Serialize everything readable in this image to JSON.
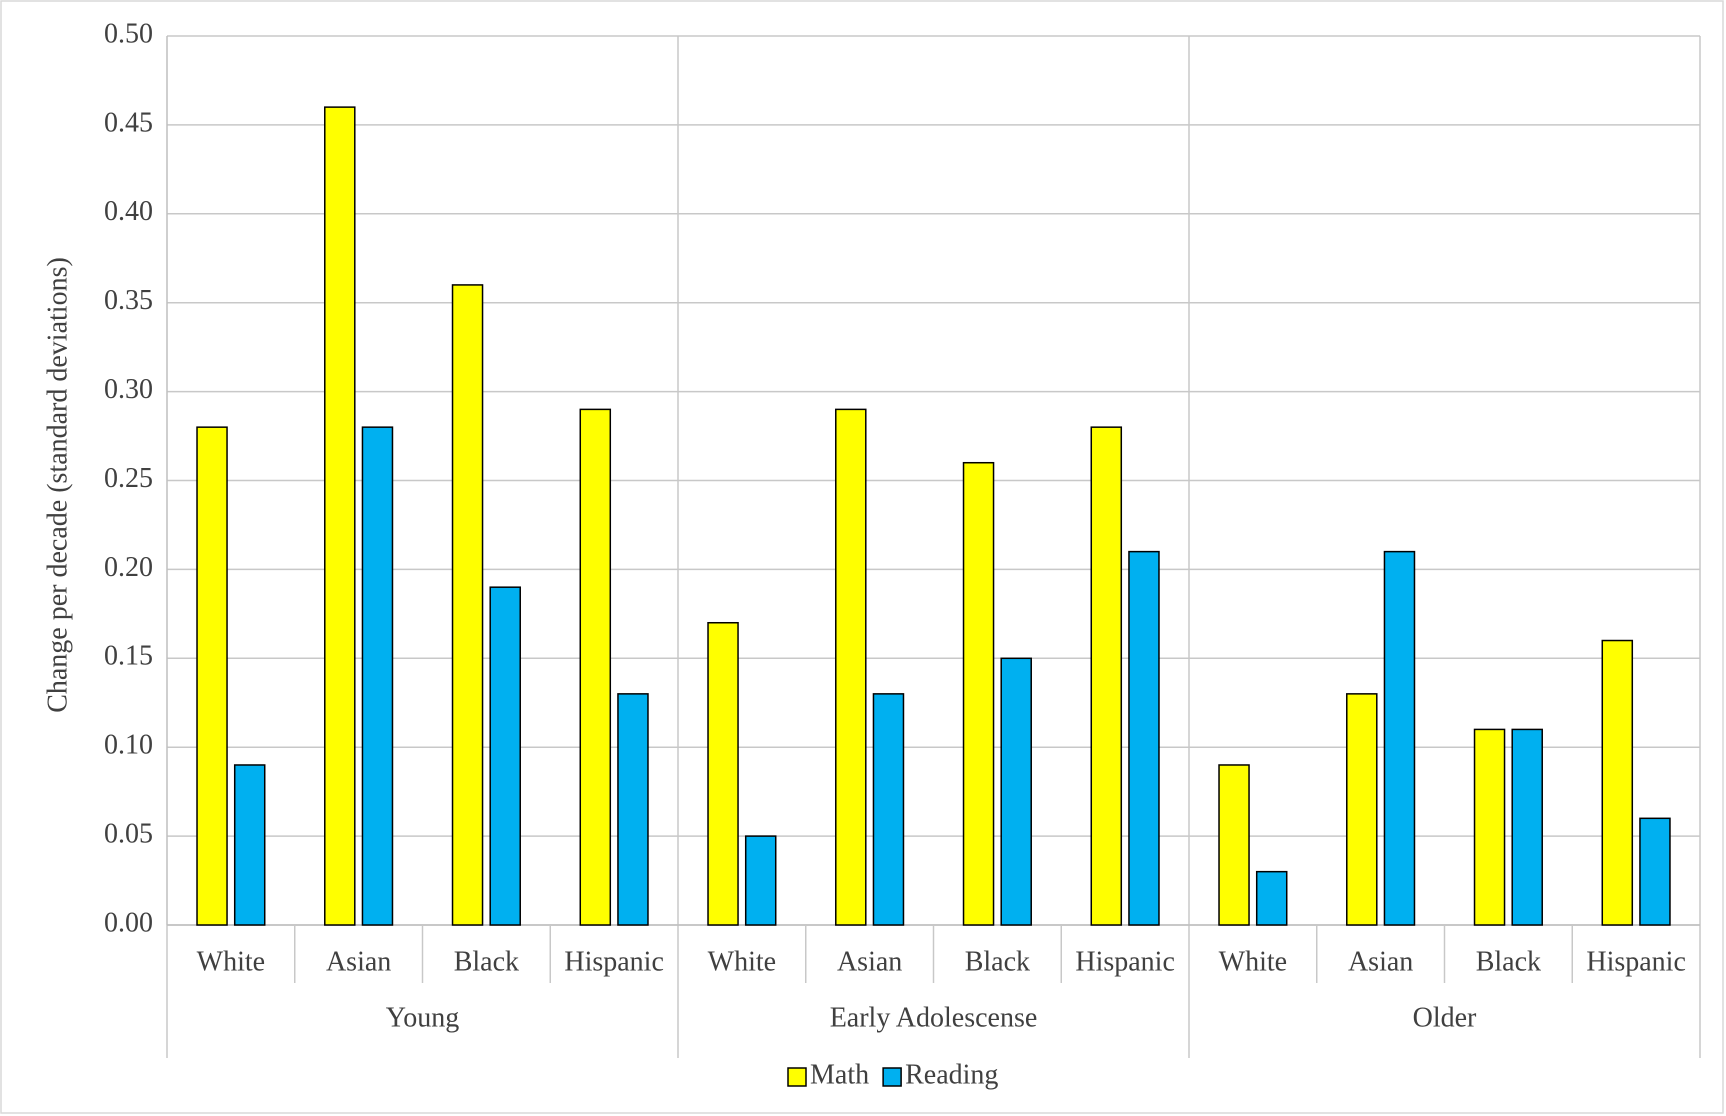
{
  "chart_data": {
    "type": "bar",
    "y_label": "Change per decade (standard deviations)",
    "groups": [
      "Young",
      "Early Adolescense",
      "Older"
    ],
    "categories": [
      "White",
      "Asian",
      "Black",
      "Hispanic",
      "White",
      "Asian",
      "Black",
      "Hispanic",
      "White",
      "Asian",
      "Black",
      "Hispanic"
    ],
    "series": [
      {
        "name": "Math",
        "color": "#ffff00",
        "values": [
          0.28,
          0.46,
          0.36,
          0.29,
          0.17,
          0.29,
          0.26,
          0.28,
          0.09,
          0.13,
          0.11,
          0.16
        ]
      },
      {
        "name": "Reading",
        "color": "#00b0f0",
        "values": [
          0.09,
          0.28,
          0.19,
          0.13,
          0.05,
          0.13,
          0.15,
          0.21,
          0.03,
          0.21,
          0.11,
          0.06
        ]
      }
    ],
    "ylim": [
      0,
      0.5
    ],
    "yticks": [
      {
        "value": 0,
        "label": "0.00"
      },
      {
        "value": 0.05,
        "label": "0.05"
      },
      {
        "value": 0.1,
        "label": "0.10"
      },
      {
        "value": 0.15,
        "label": "0.15"
      },
      {
        "value": 0.2,
        "label": "0.20"
      },
      {
        "value": 0.25,
        "label": "0.25"
      },
      {
        "value": 0.3,
        "label": "0.30"
      },
      {
        "value": 0.35,
        "label": "0.35"
      },
      {
        "value": 0.4,
        "label": "0.40"
      },
      {
        "value": 0.45,
        "label": "0.45"
      },
      {
        "value": 0.5,
        "label": "0.50"
      }
    ],
    "grid": true,
    "legend": "bottom"
  }
}
